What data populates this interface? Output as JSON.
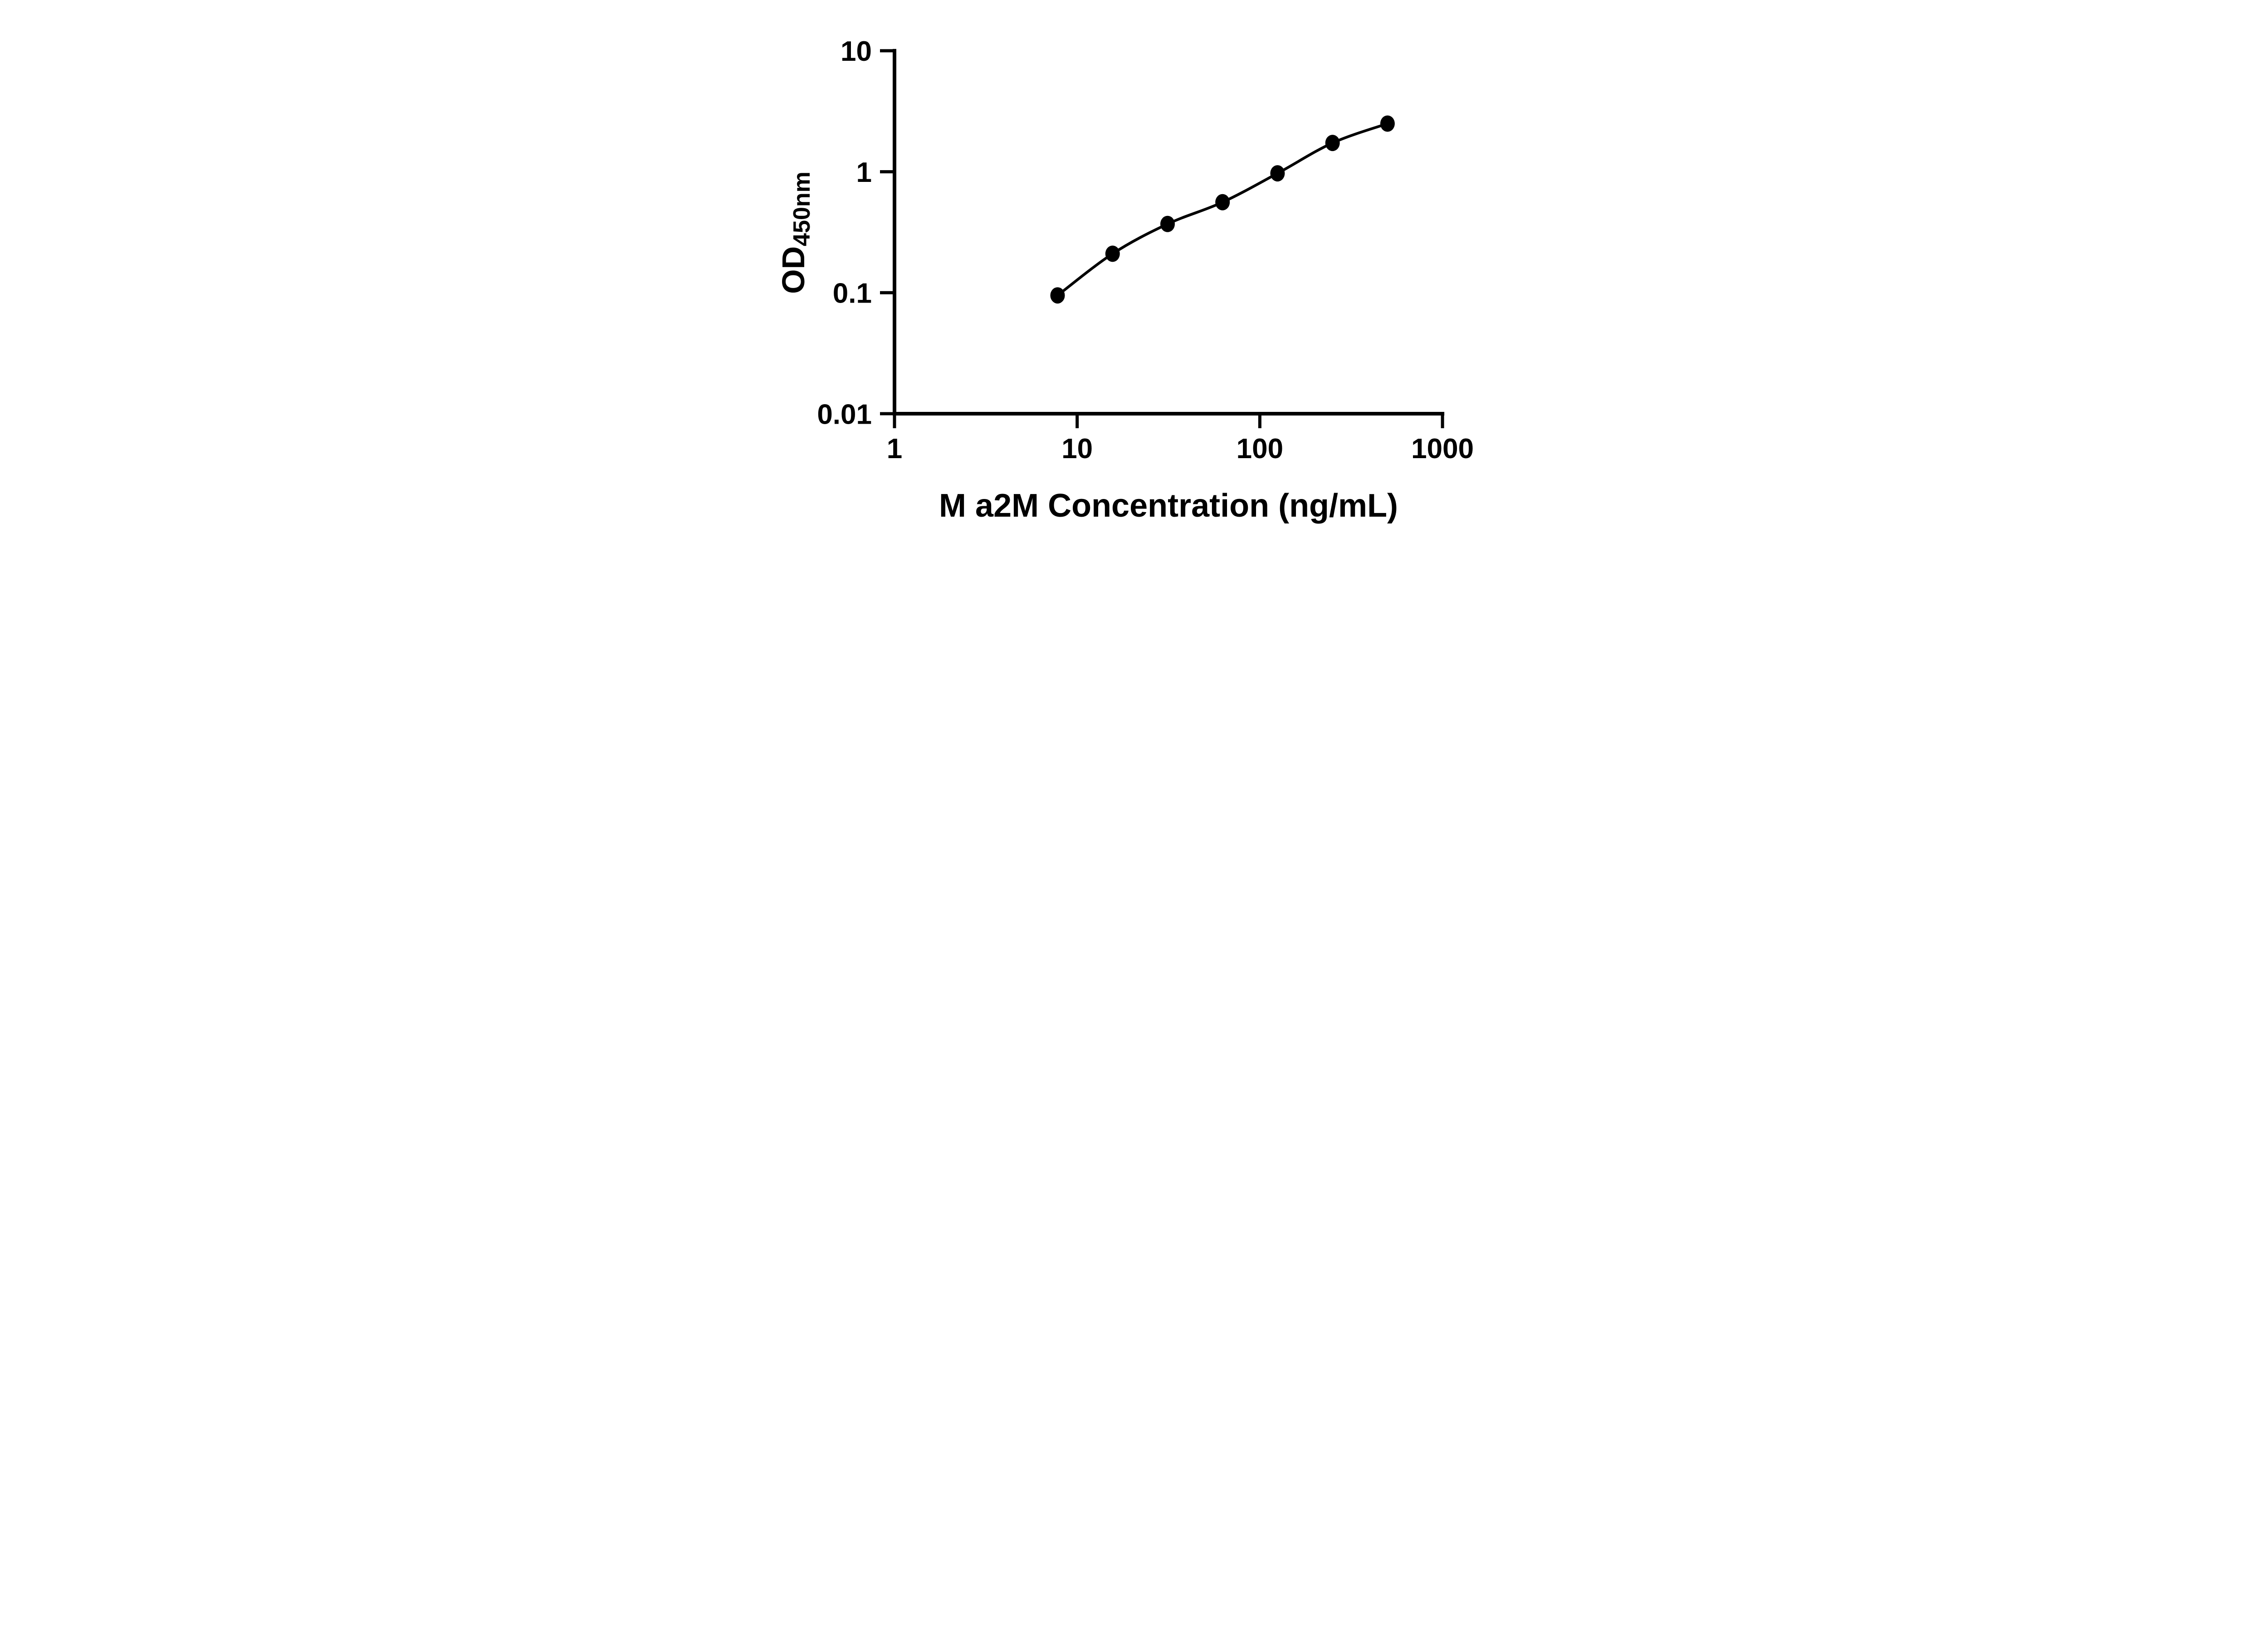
{
  "figure": {
    "background": "#ffffff",
    "ink_color": "#000000",
    "description": "ELISA standard curve, black on white, log-log axes, L-shaped axis frame with outward ticks"
  },
  "chart_data": {
    "type": "scatter",
    "title": "",
    "xlabel": "M a2M Concentration (ng/mL)",
    "ylabel_main": "OD",
    "ylabel_subscript": "450nm",
    "x_scale": "log10",
    "y_scale": "log10",
    "xlim": [
      1,
      1000
    ],
    "ylim": [
      0.01,
      10
    ],
    "x_ticks": [
      1,
      10,
      100,
      1000
    ],
    "y_ticks": [
      10,
      1,
      0.1,
      0.01
    ],
    "grid": false,
    "legend": false,
    "fit": "smooth sigmoidal (4PL-style) curve drawn through the points, ending at first and last markers",
    "series": [
      {
        "name": "M a2M standard curve",
        "marker": "filled-circle",
        "color": "#000000",
        "points": [
          {
            "x": 7.8125,
            "y": 0.095
          },
          {
            "x": 15.625,
            "y": 0.21
          },
          {
            "x": 31.25,
            "y": 0.37
          },
          {
            "x": 62.5,
            "y": 0.56
          },
          {
            "x": 125,
            "y": 0.97
          },
          {
            "x": 250,
            "y": 1.73
          },
          {
            "x": 500,
            "y": 2.5
          }
        ]
      }
    ]
  }
}
